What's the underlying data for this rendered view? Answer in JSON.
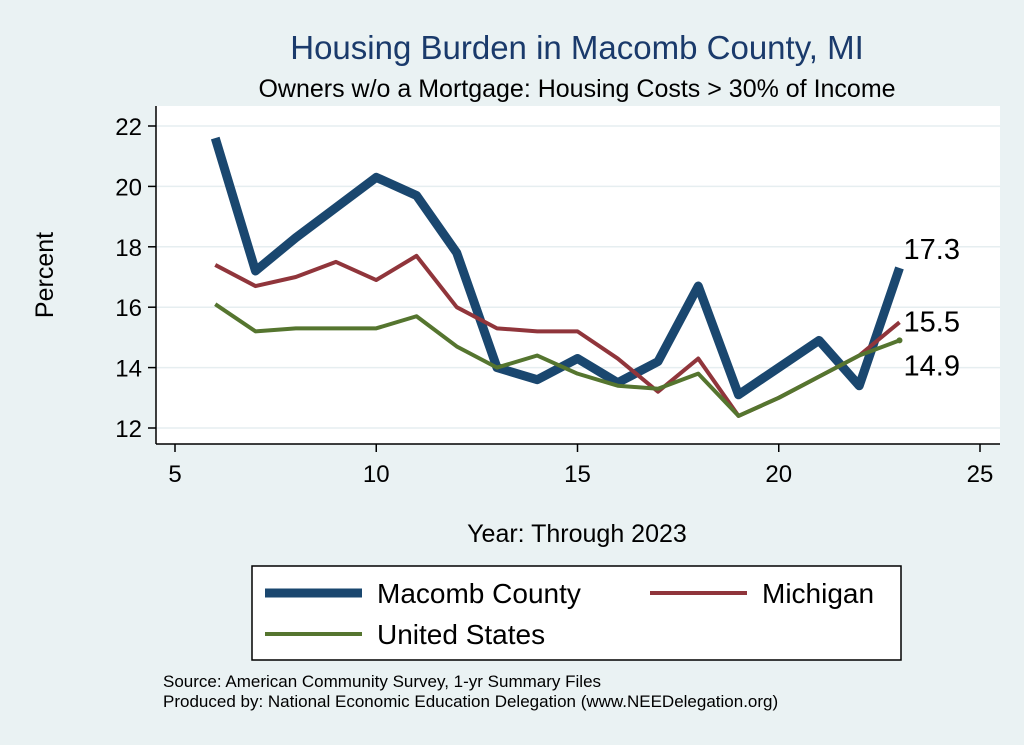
{
  "chart_data": {
    "type": "line",
    "title": "Housing Burden in Macomb County, MI",
    "subtitle": "Owners w/o a Mortgage: Housing Costs > 30% of Income",
    "xlabel": "Year: Through 2023",
    "ylabel": "Percent",
    "xlim": [
      5,
      25
    ],
    "ylim": [
      12,
      22
    ],
    "xticks": [
      5,
      10,
      15,
      20,
      25
    ],
    "yticks": [
      12,
      14,
      16,
      18,
      20,
      22
    ],
    "grid": true,
    "x": [
      6,
      7,
      8,
      9,
      10,
      11,
      12,
      13,
      14,
      15,
      16,
      17,
      18,
      19,
      20,
      21,
      22,
      23
    ],
    "series": [
      {
        "name": "Macomb County",
        "color": "#1a476f",
        "values": [
          21.6,
          17.2,
          18.3,
          19.3,
          20.3,
          19.7,
          17.8,
          14.0,
          13.6,
          14.3,
          13.5,
          14.2,
          16.7,
          13.1,
          14.0,
          14.9,
          13.4,
          17.3
        ],
        "end_label": "17.3"
      },
      {
        "name": "Michigan",
        "color": "#90353b",
        "values": [
          17.4,
          16.7,
          17.0,
          17.5,
          16.9,
          17.7,
          16.0,
          15.3,
          15.2,
          15.2,
          14.3,
          13.2,
          14.3,
          12.4,
          13.0,
          13.7,
          14.4,
          15.5
        ],
        "end_label": "15.5"
      },
      {
        "name": "United States",
        "color": "#55752f",
        "values": [
          16.1,
          15.2,
          15.3,
          15.3,
          15.3,
          15.7,
          14.7,
          14.0,
          14.4,
          13.8,
          13.4,
          13.3,
          13.8,
          12.4,
          13.0,
          13.7,
          14.4,
          14.9
        ],
        "end_label": "14.9"
      }
    ],
    "legend": {
      "position": "bottom",
      "items": [
        "Macomb County",
        "Michigan",
        "United States"
      ]
    }
  },
  "footer": {
    "source": "Source: American Community Survey, 1-yr Summary Files",
    "produced_by": "Produced by: National Economic Education Delegation (www.NEEDelegation.org)"
  }
}
